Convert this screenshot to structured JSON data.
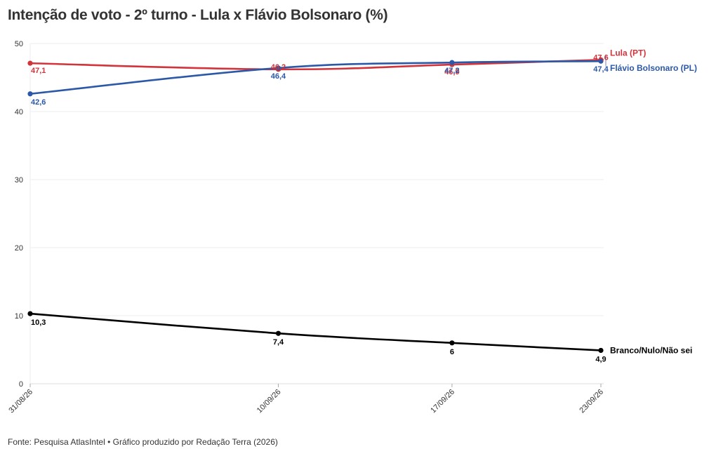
{
  "title": "Intenção de voto - 2º turno - Lula x Flávio Bolsonaro (%)",
  "source": "Fonte: Pesquisa AtlasIntel • Gráfico produzido por Redação Terra (2026)",
  "chart_data": {
    "type": "line",
    "title": "Intenção de voto - 2º turno - Lula x Flávio Bolsonaro (%)",
    "xlabel": "",
    "ylabel": "",
    "x": [
      "2026-08-31",
      "2026-09-10",
      "2026-09-17",
      "2026-09-23"
    ],
    "x_tick_labels": [
      "31/08/26",
      "10/09/26",
      "17/09/26",
      "23/09/26"
    ],
    "y_ticks": [
      0,
      10,
      20,
      30,
      40,
      50
    ],
    "y_tick_labels": [
      "0",
      "10",
      "20",
      "30",
      "40",
      "50"
    ],
    "ylim": [
      0,
      50
    ],
    "grid": true,
    "legend": "labels at line ends (right)",
    "series": [
      {
        "name": "Lula (PT)",
        "color": "#d1343b",
        "values": [
          47.1,
          46.2,
          46.9,
          47.6
        ],
        "labels": [
          "47,1",
          "46,2",
          "46,9",
          "47,6"
        ]
      },
      {
        "name": "Flávio Bolsonaro (PL)",
        "color": "#2c58a8",
        "values": [
          42.6,
          46.4,
          47.2,
          47.4
        ],
        "labels": [
          "42,6",
          "46,4",
          "47,2",
          "47,4"
        ]
      },
      {
        "name": "Branco/Nulo/Não sei",
        "color": "#000000",
        "values": [
          10.3,
          7.4,
          6,
          4.9
        ],
        "labels": [
          "10,3",
          "7,4",
          "6",
          "4,9"
        ]
      }
    ]
  }
}
